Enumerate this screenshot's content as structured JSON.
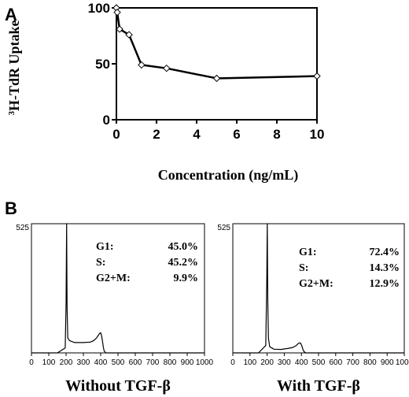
{
  "panels": {
    "a_label": "A",
    "b_label": "B"
  },
  "chart_data": [
    {
      "type": "line",
      "panel": "A",
      "xlabel": "Concentration (ng/mL)",
      "ylabel_sup": "3",
      "ylabel_main": "H-TdR Uptake",
      "xlim": [
        0,
        10
      ],
      "ylim": [
        0,
        100
      ],
      "xticks": [
        "0",
        "2",
        "4",
        "6",
        "8",
        "10"
      ],
      "yticks": [
        "0",
        "50",
        "100"
      ],
      "grid": false,
      "series": [
        {
          "x": [
            0,
            0.04,
            0.16,
            0.63,
            1.25,
            2.5,
            5,
            10
          ],
          "y": [
            100,
            96,
            81,
            76,
            49,
            46,
            37,
            39
          ]
        }
      ]
    },
    {
      "type": "histogram",
      "panel": "B-left",
      "title": "Without TGF-β",
      "ymax_label": "525",
      "xlim": [
        0,
        1000
      ],
      "ylim": [
        0,
        525
      ],
      "xticks": [
        "0",
        "100",
        "200",
        "300",
        "400",
        "500",
        "600",
        "700",
        "800",
        "900",
        "1000"
      ],
      "stats": [
        {
          "label": "G1:",
          "value": "45.0%"
        },
        {
          "label": "S:",
          "value": "45.2%"
        },
        {
          "label": "G2+M:",
          "value": "9.9%"
        }
      ],
      "profile": {
        "x": [
          0,
          150,
          195,
          200,
          203,
          206,
          210,
          220,
          250,
          300,
          340,
          360,
          375,
          385,
          395,
          400,
          405,
          410,
          415,
          420,
          430,
          600,
          1000
        ],
        "y": [
          0,
          0,
          20,
          200,
          525,
          180,
          60,
          50,
          42,
          42,
          44,
          50,
          60,
          70,
          80,
          82,
          70,
          50,
          25,
          8,
          0,
          0,
          0
        ]
      }
    },
    {
      "type": "histogram",
      "panel": "B-right",
      "title": "With TGF-β",
      "ymax_label": "525",
      "xlim": [
        0,
        1000
      ],
      "ylim": [
        0,
        525
      ],
      "xticks": [
        "0",
        "100",
        "200",
        "300",
        "400",
        "500",
        "600",
        "700",
        "800",
        "900",
        "1000"
      ],
      "stats": [
        {
          "label": "G1:",
          "value": "72.4%"
        },
        {
          "label": "S:",
          "value": "14.3%"
        },
        {
          "label": "G2+M:",
          "value": "12.9%"
        }
      ],
      "profile": {
        "x": [
          0,
          150,
          192,
          198,
          201,
          204,
          208,
          215,
          240,
          280,
          320,
          350,
          370,
          385,
          395,
          402,
          410,
          415,
          425,
          600,
          1000
        ],
        "y": [
          0,
          0,
          30,
          300,
          525,
          200,
          60,
          25,
          15,
          14,
          18,
          22,
          30,
          40,
          40,
          30,
          12,
          5,
          0,
          0,
          0
        ]
      }
    }
  ]
}
